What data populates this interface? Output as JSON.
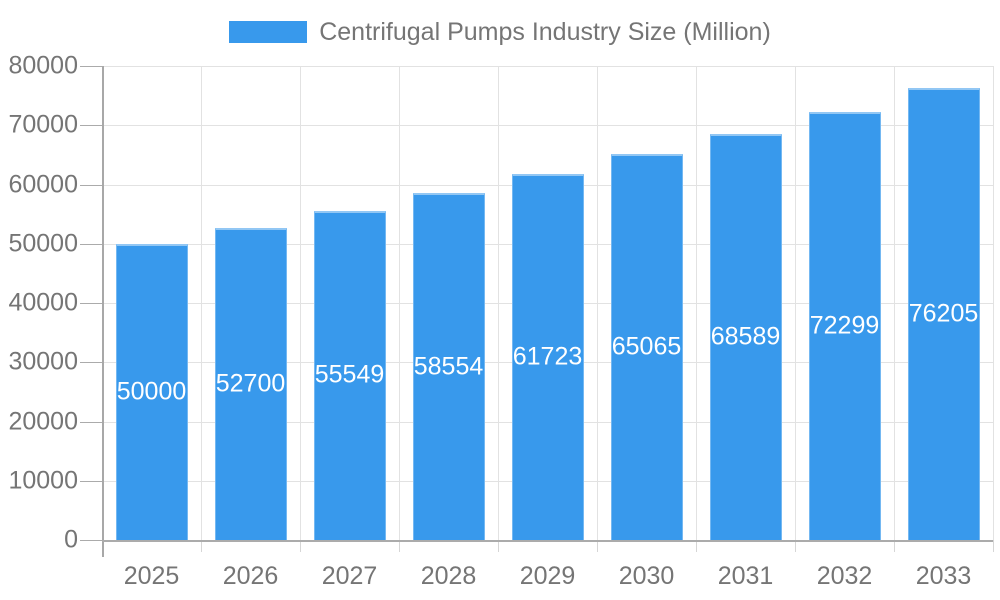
{
  "chart_data": {
    "type": "bar",
    "title": "Centrifugal Pumps Industry Size (Million)",
    "categories": [
      "2025",
      "2026",
      "2027",
      "2028",
      "2029",
      "2030",
      "2031",
      "2032",
      "2033"
    ],
    "values": [
      50000,
      52700,
      55549,
      58554,
      61723,
      65065,
      68589,
      72299,
      76205
    ],
    "value_labels": [
      "50000",
      "52700",
      "55549",
      "58554",
      "61723",
      "65065",
      "68589",
      "72299",
      "76205"
    ],
    "xlabel": "",
    "ylabel": "",
    "ylim": [
      0,
      80000
    ],
    "ytick_interval": 10000,
    "ytick_labels": [
      "0",
      "10000",
      "20000",
      "30000",
      "40000",
      "50000",
      "60000",
      "70000",
      "80000"
    ],
    "grid": true,
    "legend_position": "top",
    "colors": {
      "bar": "#3899EC",
      "value_label": "#FFFFFF",
      "axis_text": "#757575",
      "legend_text": "#757575",
      "gridline": "#E2E2E2",
      "axis_line": "#ABABAB",
      "background": "#FFFFFF"
    }
  }
}
